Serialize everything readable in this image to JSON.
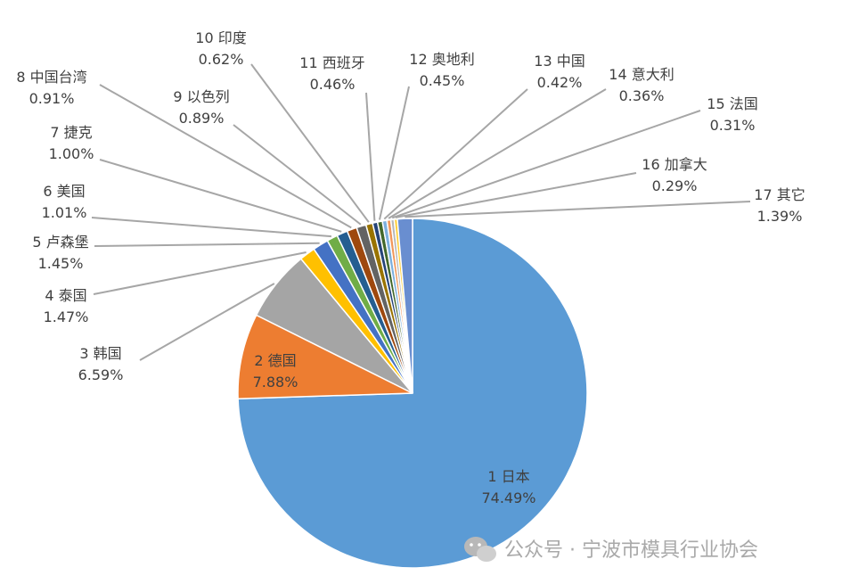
{
  "chart_data": {
    "type": "pie",
    "title": "",
    "slices": [
      {
        "label": "1 日本",
        "value": 74.49,
        "value_label": "74.49%",
        "color": "#5b9bd5"
      },
      {
        "label": "2 德国",
        "value": 7.88,
        "value_label": "7.88%",
        "color": "#ed7d31"
      },
      {
        "label": "3 韩国",
        "value": 6.59,
        "value_label": "6.59%",
        "color": "#a5a5a5"
      },
      {
        "label": "4 泰国",
        "value": 1.47,
        "value_label": "1.47%",
        "color": "#ffc000"
      },
      {
        "label": "5 卢森堡",
        "value": 1.45,
        "value_label": "1.45%",
        "color": "#4472c4"
      },
      {
        "label": "6 美国",
        "value": 1.01,
        "value_label": "1.01%",
        "color": "#70ad47"
      },
      {
        "label": "7 捷克",
        "value": 1.0,
        "value_label": "1.00%",
        "color": "#255e91"
      },
      {
        "label": "8 中国台湾",
        "value": 0.91,
        "value_label": "0.91%",
        "color": "#9e480e"
      },
      {
        "label": "9 以色列",
        "value": 0.89,
        "value_label": "0.89%",
        "color": "#636363"
      },
      {
        "label": "10 印度",
        "value": 0.62,
        "value_label": "0.62%",
        "color": "#997300"
      },
      {
        "label": "11 西班牙",
        "value": 0.46,
        "value_label": "0.46%",
        "color": "#264478"
      },
      {
        "label": "12 奥地利",
        "value": 0.45,
        "value_label": "0.45%",
        "color": "#43682b"
      },
      {
        "label": "13 中国",
        "value": 0.42,
        "value_label": "0.42%",
        "color": "#7cafdd"
      },
      {
        "label": "14 意大利",
        "value": 0.36,
        "value_label": "0.36%",
        "color": "#f1975a"
      },
      {
        "label": "15 法国",
        "value": 0.31,
        "value_label": "0.31%",
        "color": "#b7b7b7"
      },
      {
        "label": "16 加拿大",
        "value": 0.29,
        "value_label": "0.29%",
        "color": "#ffcd33"
      },
      {
        "label": "17 其它",
        "value": 1.39,
        "value_label": "1.39%",
        "color": "#698ed0"
      }
    ],
    "start_angle": "12 o'clock",
    "direction": "clockwise",
    "legend": "none"
  },
  "watermark": {
    "text": "公众号 · 宁波市模具行业协会",
    "icon": "wechat-icon"
  }
}
